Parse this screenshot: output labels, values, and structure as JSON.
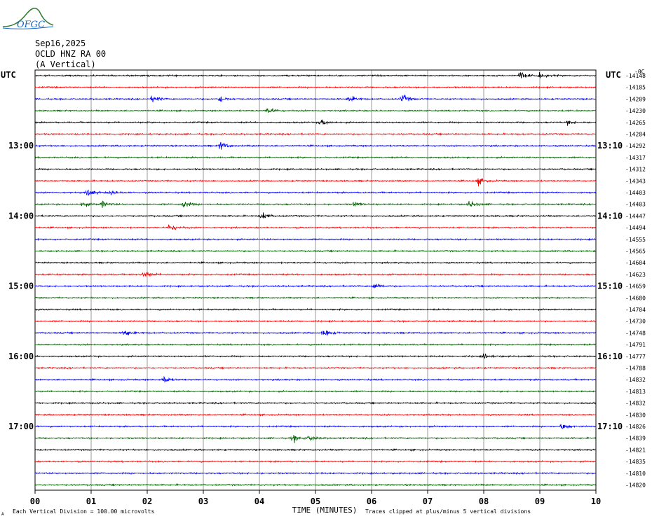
{
  "header": {
    "logo_text": "OFGC",
    "date": "Sep16,2025",
    "station": "OCLD HNZ RA 00",
    "component": "(A Vertical)",
    "left_utc": "UTC",
    "right_utc": "UTC"
  },
  "footer": {
    "scale_note": "Each Vertical Division =  100.00 microvolts",
    "clip_note": "Traces clipped at plus/minus 5 vertical divisions",
    "corner_mark": "A"
  },
  "colors": {
    "trace_cycle": [
      "#000000",
      "#ff0000",
      "#0000ff",
      "#006400"
    ],
    "grid": "#000000",
    "background": "#ffffff"
  },
  "chart_data": {
    "type": "line",
    "subtype": "helicorder",
    "xlabel": "TIME (MINUTES)",
    "x_ticks": [
      "00",
      "01",
      "02",
      "03",
      "04",
      "05",
      "06",
      "07",
      "08",
      "09",
      "10"
    ],
    "xlim": [
      0,
      10
    ],
    "left_hour_labels": [
      {
        "row": 6,
        "label": "13:00"
      },
      {
        "row": 12,
        "label": "14:00"
      },
      {
        "row": 18,
        "label": "15:00"
      },
      {
        "row": 24,
        "label": "16:00"
      },
      {
        "row": 30,
        "label": "17:00"
      }
    ],
    "right_hour_labels": [
      {
        "row": 6,
        "label": "13:10"
      },
      {
        "row": 12,
        "label": "14:10"
      },
      {
        "row": 18,
        "label": "15:10"
      },
      {
        "row": 24,
        "label": "16:10"
      },
      {
        "row": 30,
        "label": "17:10"
      }
    ],
    "first_row_right_label": "-0C",
    "row_offsets": [
      "-14148",
      "-14185",
      "-14209",
      "-14230",
      "-14265",
      "-14284",
      "-14292",
      "-14317",
      "-14312",
      "-14343",
      "-14403",
      "-14403",
      "-14447",
      "-14494",
      "-14555",
      "-14565",
      "-14604",
      "-14623",
      "-14659",
      "-14680",
      "-14704",
      "-14730",
      "-14748",
      "-14791",
      "-14777",
      "-14788",
      "-14832",
      "-14813",
      "-14832",
      "-14830",
      "-14826",
      "-14839",
      "-14821",
      "-14835",
      "-14810",
      "-14820"
    ],
    "events": [
      {
        "row": 0,
        "minute": 8.65,
        "amplitude": 1.0
      },
      {
        "row": 0,
        "minute": 9.0,
        "amplitude": 0.6
      },
      {
        "row": 2,
        "minute": 2.1,
        "amplitude": 1.0
      },
      {
        "row": 2,
        "minute": 3.3,
        "amplitude": 0.9
      },
      {
        "row": 2,
        "minute": 5.6,
        "amplitude": 0.9
      },
      {
        "row": 2,
        "minute": 6.55,
        "amplitude": 1.1
      },
      {
        "row": 3,
        "minute": 4.15,
        "amplitude": 1.0
      },
      {
        "row": 4,
        "minute": 5.1,
        "amplitude": 1.0
      },
      {
        "row": 4,
        "minute": 9.5,
        "amplitude": 0.6
      },
      {
        "row": 6,
        "minute": 3.3,
        "amplitude": 1.1
      },
      {
        "row": 9,
        "minute": 7.9,
        "amplitude": 1.0
      },
      {
        "row": 10,
        "minute": 0.95,
        "amplitude": 1.0
      },
      {
        "row": 10,
        "minute": 1.35,
        "amplitude": 0.6
      },
      {
        "row": 11,
        "minute": 0.85,
        "amplitude": 0.7
      },
      {
        "row": 11,
        "minute": 1.2,
        "amplitude": 0.8
      },
      {
        "row": 11,
        "minute": 2.65,
        "amplitude": 0.9
      },
      {
        "row": 11,
        "minute": 5.7,
        "amplitude": 0.6
      },
      {
        "row": 11,
        "minute": 7.75,
        "amplitude": 1.0
      },
      {
        "row": 12,
        "minute": 4.05,
        "amplitude": 1.0
      },
      {
        "row": 13,
        "minute": 2.4,
        "amplitude": 1.0
      },
      {
        "row": 17,
        "minute": 1.95,
        "amplitude": 1.0
      },
      {
        "row": 18,
        "minute": 6.05,
        "amplitude": 0.9
      },
      {
        "row": 22,
        "minute": 1.6,
        "amplitude": 1.0
      },
      {
        "row": 22,
        "minute": 5.15,
        "amplitude": 1.0
      },
      {
        "row": 24,
        "minute": 8.0,
        "amplitude": 0.6
      },
      {
        "row": 26,
        "minute": 2.3,
        "amplitude": 0.9
      },
      {
        "row": 30,
        "minute": 9.4,
        "amplitude": 0.9
      },
      {
        "row": 31,
        "minute": 4.6,
        "amplitude": 1.0
      },
      {
        "row": 31,
        "minute": 4.9,
        "amplitude": 0.7
      }
    ]
  }
}
